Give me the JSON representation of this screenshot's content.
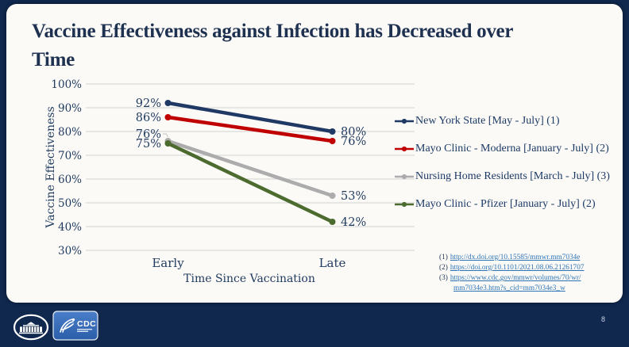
{
  "slide": {
    "title_line1": "Vaccine Effectiveness against Infection has Decreased over",
    "title_line2": "Time",
    "page_number": "8"
  },
  "chart_data": {
    "type": "line",
    "title": "",
    "categories": [
      "Early",
      "Late"
    ],
    "xlabel": "Time Since Vaccination",
    "ylabel": "Vaccine Effectiveness",
    "ylim": [
      30,
      100
    ],
    "yticks": [
      30,
      40,
      50,
      60,
      70,
      80,
      90,
      100
    ],
    "ytick_labels": [
      "30%",
      "40%",
      "50%",
      "60%",
      "70%",
      "80%",
      "90%",
      "100%"
    ],
    "grid": true,
    "legend_position": "right",
    "series": [
      {
        "name": "New York State [May - July] (1)",
        "values": [
          92,
          80
        ],
        "labels": [
          "92%",
          "80%"
        ],
        "color": "#1F3864"
      },
      {
        "name": "Mayo Clinic - Moderna [January - July] (2)",
        "values": [
          86,
          76
        ],
        "labels": [
          "86%",
          "76%"
        ],
        "color": "#C00000"
      },
      {
        "name": "Nursing Home Residents [March - July] (3)",
        "values": [
          76,
          53
        ],
        "labels": [
          "76%",
          "53%"
        ],
        "color": "#ACACAC"
      },
      {
        "name": "Mayo Clinic - Pfizer [January - July] (2)",
        "values": [
          75,
          42
        ],
        "labels": [
          "75%",
          "42%"
        ],
        "color": "#4C6B2F"
      }
    ]
  },
  "citations": [
    {
      "prefix": "(1)",
      "url": "http://dx.doi.org/10.15585/mmwr.mm7034e"
    },
    {
      "prefix": "(2)",
      "url": "https://doi.org/10.1101/2021.08.06.21261707"
    },
    {
      "prefix": "(3)",
      "url_line1": "https://www.cdc.gov/mmwr/volumes/70/wr/",
      "url_line2": "mm7034e3.htm?s_cid=mm7034e3_w"
    }
  ],
  "footer": {
    "whitehouse_icon": "white-house-logo",
    "cdc_icon": "cdc-logo",
    "cdc_label": "CDC"
  },
  "colors": {
    "background": "#10284E",
    "card": "#FBFAF7",
    "title_text": "#1E3150",
    "chart_text": "#1F3A5F",
    "grid": "#D9D9D9",
    "link": "#2E74B5",
    "legend_text": "#1C3A66",
    "leader_line": "#C0C0C0"
  }
}
